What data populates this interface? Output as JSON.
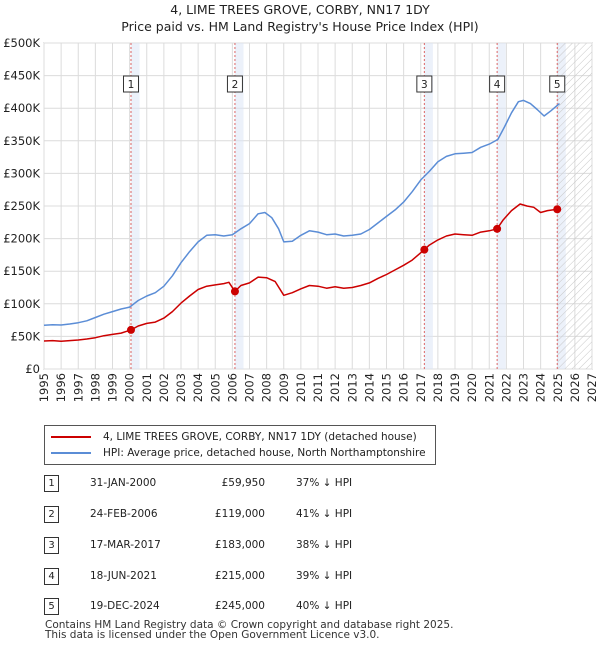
{
  "chart_data": {
    "type": "line",
    "title": "4, LIME TREES GROVE, CORBY, NN17 1DY",
    "subtitle": "Price paid vs. HM Land Registry's House Price Index (HPI)",
    "xlim": [
      1995,
      2027
    ],
    "ylim": [
      0,
      500000
    ],
    "x_ticks": [
      "1995",
      "1996",
      "1997",
      "1998",
      "1999",
      "2000",
      "2001",
      "2002",
      "2003",
      "2004",
      "2005",
      "2006",
      "2007",
      "2008",
      "2009",
      "2010",
      "2011",
      "2012",
      "2013",
      "2014",
      "2015",
      "2016",
      "2017",
      "2018",
      "2019",
      "2020",
      "2021",
      "2022",
      "2023",
      "2024",
      "2025",
      "2026",
      "2027"
    ],
    "y_ticks": [
      {
        "value": 0,
        "label": "£0"
      },
      {
        "value": 50000,
        "label": "£50K"
      },
      {
        "value": 100000,
        "label": "£100K"
      },
      {
        "value": 150000,
        "label": "£150K"
      },
      {
        "value": 200000,
        "label": "£200K"
      },
      {
        "value": 250000,
        "label": "£250K"
      },
      {
        "value": 300000,
        "label": "£300K"
      },
      {
        "value": 350000,
        "label": "£350K"
      },
      {
        "value": 400000,
        "label": "£400K"
      },
      {
        "value": 450000,
        "label": "£450K"
      },
      {
        "value": 500000,
        "label": "£500K"
      }
    ],
    "grid": true,
    "future_region_start": 2025.0,
    "series": [
      {
        "name": "4, LIME TREES GROVE, CORBY, NN17 1DY (detached house)",
        "color": "#cc0000",
        "points": [
          [
            1995.0,
            43000
          ],
          [
            1995.5,
            43500
          ],
          [
            1996.0,
            42500
          ],
          [
            1996.5,
            43500
          ],
          [
            1997.0,
            44500
          ],
          [
            1997.5,
            46000
          ],
          [
            1998.0,
            48000
          ],
          [
            1998.5,
            51000
          ],
          [
            1999.0,
            53000
          ],
          [
            1999.5,
            55000
          ],
          [
            2000.08,
            59950
          ],
          [
            2000.5,
            66000
          ],
          [
            2001.0,
            70000
          ],
          [
            2001.5,
            72000
          ],
          [
            2002.0,
            78000
          ],
          [
            2002.5,
            88000
          ],
          [
            2003.0,
            101000
          ],
          [
            2003.5,
            112000
          ],
          [
            2004.0,
            122000
          ],
          [
            2004.5,
            127000
          ],
          [
            2005.0,
            129000
          ],
          [
            2005.5,
            131000
          ],
          [
            2005.8,
            133000
          ],
          [
            2006.15,
            119000
          ],
          [
            2006.5,
            128000
          ],
          [
            2007.0,
            132000
          ],
          [
            2007.5,
            141000
          ],
          [
            2008.0,
            140000
          ],
          [
            2008.5,
            134000
          ],
          [
            2009.0,
            113000
          ],
          [
            2009.5,
            117000
          ],
          [
            2010.0,
            123000
          ],
          [
            2010.5,
            128000
          ],
          [
            2011.0,
            127000
          ],
          [
            2011.5,
            124000
          ],
          [
            2012.0,
            126000
          ],
          [
            2012.5,
            124000
          ],
          [
            2013.0,
            125000
          ],
          [
            2013.5,
            128000
          ],
          [
            2014.0,
            132000
          ],
          [
            2014.5,
            139000
          ],
          [
            2015.0,
            145000
          ],
          [
            2015.5,
            152000
          ],
          [
            2016.0,
            159000
          ],
          [
            2016.5,
            167000
          ],
          [
            2017.21,
            183000
          ],
          [
            2017.5,
            190000
          ],
          [
            2018.0,
            198000
          ],
          [
            2018.5,
            204000
          ],
          [
            2019.0,
            207000
          ],
          [
            2019.5,
            206000
          ],
          [
            2020.0,
            205000
          ],
          [
            2020.5,
            210000
          ],
          [
            2021.0,
            212000
          ],
          [
            2021.46,
            215000
          ],
          [
            2021.8,
            228000
          ],
          [
            2022.3,
            243000
          ],
          [
            2022.8,
            253000
          ],
          [
            2023.2,
            250000
          ],
          [
            2023.6,
            248000
          ],
          [
            2024.0,
            240000
          ],
          [
            2024.4,
            243000
          ],
          [
            2024.97,
            245000
          ],
          [
            2025.1,
            243000
          ]
        ]
      },
      {
        "name": "HPI: Average price, detached house, North Northamptonshire",
        "color": "#5b8dd6",
        "points": [
          [
            1995.0,
            67000
          ],
          [
            1995.5,
            68000
          ],
          [
            1996.0,
            67500
          ],
          [
            1996.5,
            69000
          ],
          [
            1997.0,
            71000
          ],
          [
            1997.5,
            74000
          ],
          [
            1998.0,
            79000
          ],
          [
            1998.5,
            84000
          ],
          [
            1999.0,
            88000
          ],
          [
            1999.5,
            92000
          ],
          [
            2000.0,
            95000
          ],
          [
            2000.5,
            105000
          ],
          [
            2001.0,
            112000
          ],
          [
            2001.5,
            117000
          ],
          [
            2002.0,
            127000
          ],
          [
            2002.5,
            143000
          ],
          [
            2003.0,
            163000
          ],
          [
            2003.5,
            180000
          ],
          [
            2004.0,
            195000
          ],
          [
            2004.5,
            205000
          ],
          [
            2005.0,
            206000
          ],
          [
            2005.5,
            204000
          ],
          [
            2006.0,
            206000
          ],
          [
            2006.5,
            215000
          ],
          [
            2007.0,
            223000
          ],
          [
            2007.5,
            238000
          ],
          [
            2007.9,
            240000
          ],
          [
            2008.3,
            232000
          ],
          [
            2008.7,
            215000
          ],
          [
            2009.0,
            195000
          ],
          [
            2009.5,
            196000
          ],
          [
            2010.0,
            205000
          ],
          [
            2010.5,
            212000
          ],
          [
            2011.0,
            210000
          ],
          [
            2011.5,
            206000
          ],
          [
            2012.0,
            207000
          ],
          [
            2012.5,
            204000
          ],
          [
            2013.0,
            205000
          ],
          [
            2013.5,
            207000
          ],
          [
            2014.0,
            214000
          ],
          [
            2014.5,
            224000
          ],
          [
            2015.0,
            234000
          ],
          [
            2015.5,
            244000
          ],
          [
            2016.0,
            256000
          ],
          [
            2016.5,
            272000
          ],
          [
            2017.0,
            290000
          ],
          [
            2017.5,
            303000
          ],
          [
            2018.0,
            318000
          ],
          [
            2018.5,
            326000
          ],
          [
            2019.0,
            330000
          ],
          [
            2019.5,
            331000
          ],
          [
            2020.0,
            332000
          ],
          [
            2020.5,
            340000
          ],
          [
            2021.0,
            345000
          ],
          [
            2021.5,
            352000
          ],
          [
            2021.9,
            372000
          ],
          [
            2022.3,
            393000
          ],
          [
            2022.7,
            410000
          ],
          [
            2023.0,
            412000
          ],
          [
            2023.4,
            407000
          ],
          [
            2023.8,
            398000
          ],
          [
            2024.2,
            388000
          ],
          [
            2024.6,
            396000
          ],
          [
            2025.0,
            405000
          ],
          [
            2025.1,
            407000
          ]
        ]
      }
    ],
    "transactions": [
      {
        "marker": "1",
        "x": 2000.08,
        "y": 59950
      },
      {
        "marker": "2",
        "x": 2006.15,
        "y": 119000
      },
      {
        "marker": "3",
        "x": 2017.21,
        "y": 183000
      },
      {
        "marker": "4",
        "x": 2021.46,
        "y": 215000
      },
      {
        "marker": "5",
        "x": 2024.97,
        "y": 245000
      }
    ]
  },
  "legend": {
    "property_label": "4, LIME TREES GROVE, CORBY, NN17 1DY (detached house)",
    "hpi_label": "HPI: Average price, detached house, North Northamptonshire"
  },
  "table": [
    {
      "num": "1",
      "date": "31-JAN-2000",
      "price": "£59,950",
      "hpi": "37% ↓ HPI"
    },
    {
      "num": "2",
      "date": "24-FEB-2006",
      "price": "£119,000",
      "hpi": "41% ↓ HPI"
    },
    {
      "num": "3",
      "date": "17-MAR-2017",
      "price": "£183,000",
      "hpi": "38% ↓ HPI"
    },
    {
      "num": "4",
      "date": "18-JUN-2021",
      "price": "£215,000",
      "hpi": "39% ↓ HPI"
    },
    {
      "num": "5",
      "date": "19-DEC-2024",
      "price": "£245,000",
      "hpi": "40% ↓ HPI"
    }
  ],
  "footer": {
    "line1": "Contains HM Land Registry data © Crown copyright and database right 2025.",
    "line2": "This data is licensed under the Open Government Licence v3.0."
  },
  "colors": {
    "property": "#cc0000",
    "hpi": "#5b8dd6",
    "marker_line": "#d66",
    "shade": "#dde6f5"
  }
}
